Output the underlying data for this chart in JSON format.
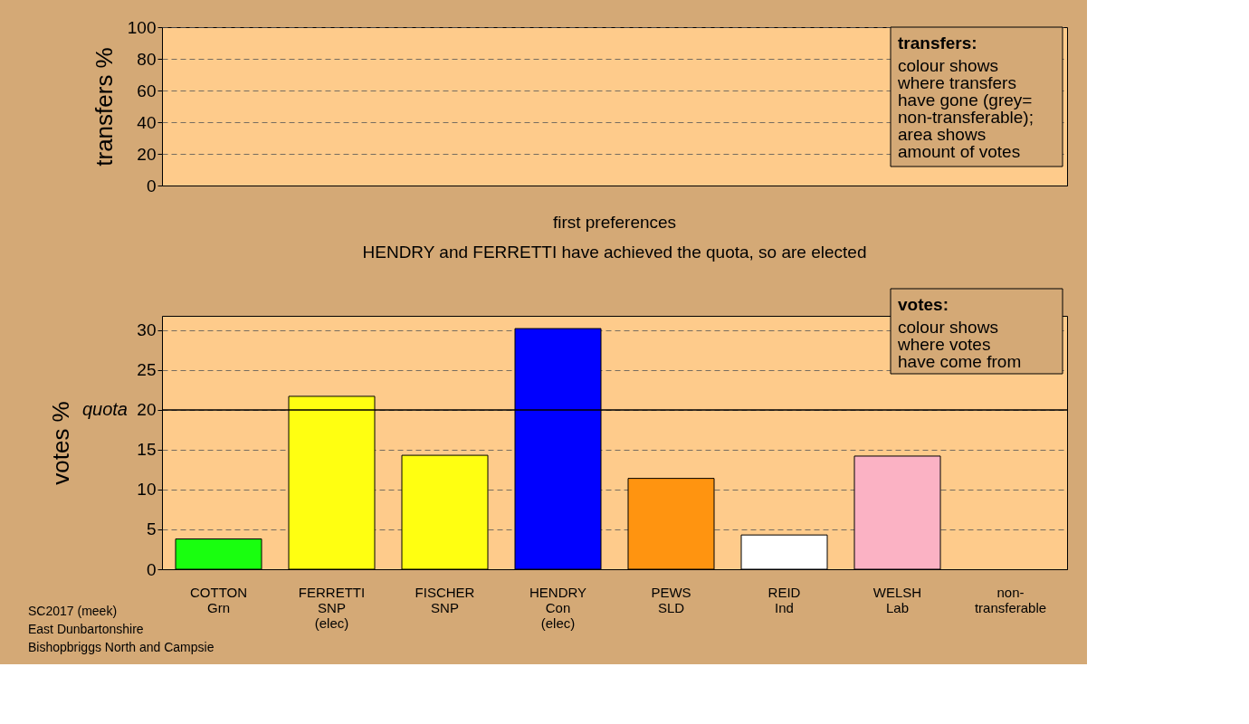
{
  "chart_data": [
    {
      "type": "bar",
      "categories": [
        null,
        null,
        null,
        null,
        null,
        null,
        null,
        null
      ],
      "values": [
        null,
        null,
        null,
        null,
        null,
        null,
        null,
        null
      ],
      "ylabel": "transfers %",
      "ylim": [
        0,
        100
      ],
      "yticks": [
        0,
        20,
        40,
        60,
        80,
        100
      ],
      "grid": "y",
      "tick_labels": "y",
      "annotations": [
        "transfers:\ncolour shows\nwhere transfers\nhave gone (grey=\nnon-transferable);\narea shows\namount of votes"
      ]
    },
    {
      "type": "bar",
      "title": "first preferences",
      "subtitle": "HENDRY and FERRETTI have achieved the quota, so are elected",
      "categories": [
        "COTTON\nGrn",
        "FERRETTI\nSNP\n(elec)",
        "FISCHER\nSNP",
        "HENDRY\nCon\n(elec)",
        "PEWS\nSLD",
        "REID\nInd",
        "WELSH\nLab",
        "non-\ntransferable"
      ],
      "values": [
        3.8,
        21.7,
        14.3,
        30.2,
        11.4,
        4.3,
        14.2,
        null
      ],
      "colors": [
        "#19ff0f",
        "#ffff11",
        "#ffff11",
        "#0000ff",
        "#ff9410",
        "#ffffff",
        "#fbb2c4",
        null
      ],
      "ylabel": "votes %",
      "ylim": [
        0,
        31.8
      ],
      "yticks": [
        0,
        5,
        10,
        15,
        20,
        25,
        30
      ],
      "grid": "y",
      "ref_lines": [
        {
          "axis": "y",
          "value": 20,
          "label": "quota",
          "color": "#000000",
          "line_style": "solid"
        }
      ],
      "annotations": [
        "votes:\ncolour shows\nwhere votes\nhave come from",
        "SC2017 (meek)\nEast Dunbartonshire\nBishopbriggs North and Campsie"
      ]
    }
  ]
}
